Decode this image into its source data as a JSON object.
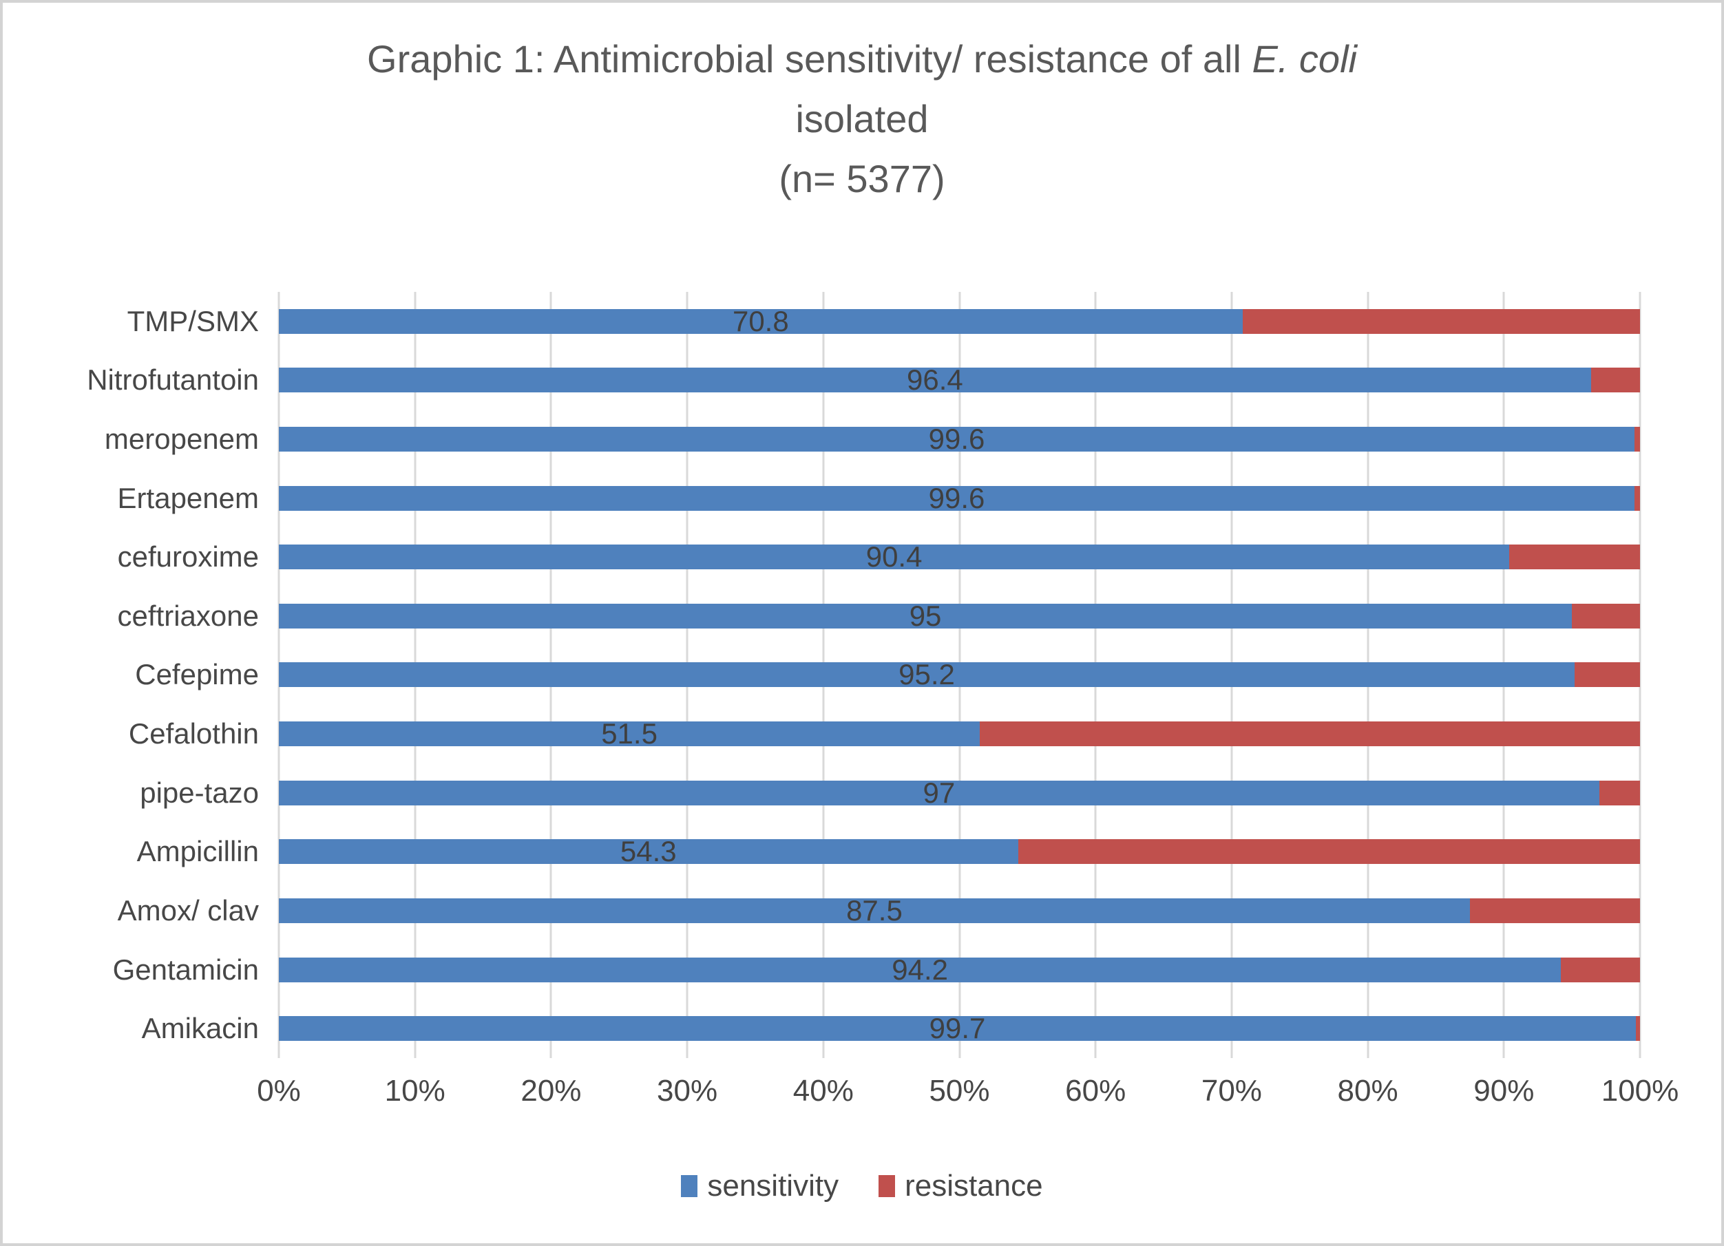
{
  "page": {
    "background": "#ffffff",
    "frame_border_color": "#d3d3d3"
  },
  "title": {
    "line1_prefix": "Graphic 1: Antimicrobial sensitivity/ resistance of all ",
    "line1_italic": "E. coli",
    "line2": "isolated",
    "line3": "(n= 5377)"
  },
  "axis": {
    "ticks": [
      "0%",
      "10%",
      "20%",
      "30%",
      "40%",
      "50%",
      "60%",
      "70%",
      "80%",
      "90%",
      "100%"
    ]
  },
  "legend": {
    "items": [
      {
        "label": "sensitivity",
        "color": "#4F81BD"
      },
      {
        "label": "resistance",
        "color": "#C0504D"
      }
    ]
  },
  "colors": {
    "sensitivity": "#4F81BD",
    "resistance": "#C0504D",
    "gridline": "#D9D9D9",
    "text": "#474747",
    "title_text": "#595959"
  },
  "chart_data": {
    "type": "bar",
    "orientation": "horizontal",
    "stacked": true,
    "title": "Graphic 1: Antimicrobial sensitivity/ resistance of all E. coli isolated (n= 5377)",
    "n": 5377,
    "categories": [
      "TMP/SMX",
      "Nitrofutantoin",
      "meropenem",
      "Ertapenem",
      "cefuroxime",
      "ceftriaxone",
      "Cefepime",
      "Cefalothin",
      "pipe-tazo",
      "Ampicillin",
      "Amox/ clav",
      "Gentamicin",
      "Amikacin"
    ],
    "series": [
      {
        "name": "sensitivity",
        "color": "#4F81BD",
        "values": [
          70.8,
          96.4,
          99.6,
          99.6,
          90.4,
          95,
          95.2,
          51.5,
          97,
          54.3,
          87.5,
          94.2,
          99.7
        ],
        "data_labels": [
          "70.8",
          "96.4",
          "99.6",
          "99.6",
          "90.4",
          "95",
          "95.2",
          "51.5",
          "97",
          "54.3",
          "87.5",
          "94.2",
          "99.7"
        ]
      },
      {
        "name": "resistance",
        "color": "#C0504D",
        "values": [
          29.2,
          3.6,
          0.4,
          0.4,
          9.6,
          5,
          4.8,
          48.5,
          3,
          45.7,
          12.5,
          5.8,
          0.3
        ]
      }
    ],
    "xlabel": "",
    "ylabel": "",
    "xlim": [
      0,
      100
    ],
    "x_tick_step": 10,
    "x_tick_format": "percent",
    "grid": "vertical-only",
    "gridline_color": "#D9D9D9",
    "legend_position": "bottom",
    "data_label_position": "center-of-sensitivity-segment"
  }
}
